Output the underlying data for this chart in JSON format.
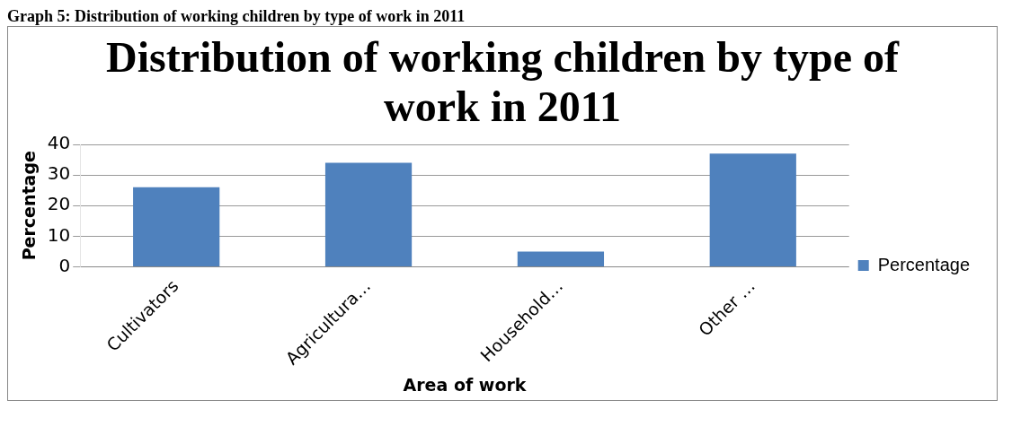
{
  "chart_data": {
    "type": "bar",
    "title": "Distribution of working children by type of work in 2011",
    "annotations": [
      "Graph 5: Distribution of working children by type of work in 2011"
    ],
    "xlabel": "Area of work",
    "ylabel": "Percentage",
    "categories": [
      "Cultivators",
      "Agricultura…",
      "Household…",
      "Other …"
    ],
    "series": [
      {
        "name": "Percentage",
        "color": "#4f81bd",
        "values": [
          26,
          34,
          5,
          37
        ]
      }
    ],
    "ylim": [
      0,
      40
    ],
    "yticks": [
      0,
      10,
      20,
      30,
      40
    ],
    "grid": "y",
    "legend": "right"
  }
}
